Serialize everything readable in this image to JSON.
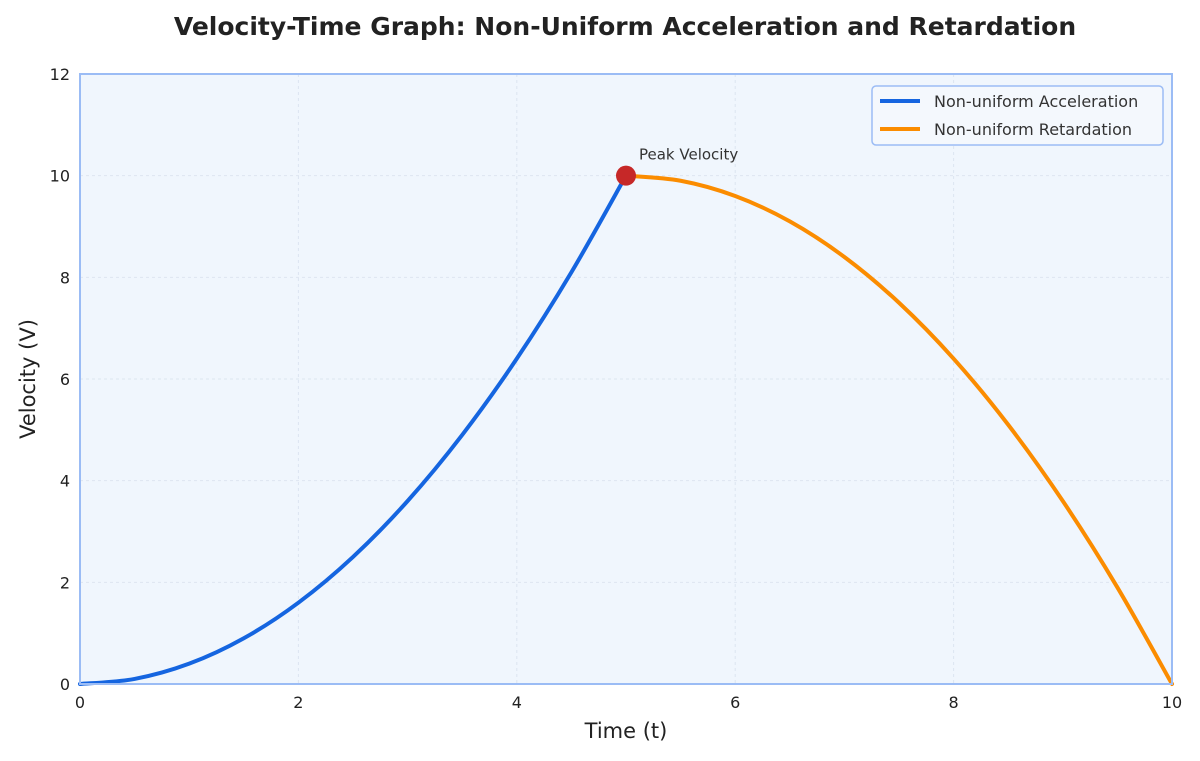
{
  "chart_data": {
    "type": "line",
    "title": "Velocity-Time Graph: Non-Uniform Acceleration and Retardation",
    "xlabel": "Time (t)",
    "ylabel": "Velocity (V)",
    "xlim": [
      0,
      10
    ],
    "ylim": [
      0,
      12
    ],
    "xticks": [
      "0",
      "2",
      "4",
      "6",
      "8",
      "10"
    ],
    "yticks": [
      "0",
      "2",
      "4",
      "6",
      "8",
      "10",
      "12"
    ],
    "grid": true,
    "legend_position": "top-right",
    "colors": {
      "acceleration": "#1565e0",
      "retardation": "#fb8c00",
      "peak": "#c62828",
      "plot_bg": "#f0f6fd",
      "frame": "#9bbcf5",
      "grid": "#dde5f0"
    },
    "series": [
      {
        "name": "Non-uniform Acceleration",
        "x": [
          0,
          0.5,
          1,
          1.5,
          2,
          2.5,
          3,
          3.5,
          4,
          4.5,
          5
        ],
        "y": [
          0,
          0.1,
          0.4,
          0.9,
          1.6,
          2.5,
          3.6,
          4.9,
          6.4,
          8.1,
          10
        ]
      },
      {
        "name": "Non-uniform Retardation",
        "x": [
          5,
          5.5,
          6,
          6.5,
          7,
          7.5,
          8,
          8.5,
          9,
          9.5,
          10
        ],
        "y": [
          10,
          9.9,
          9.6,
          9.1,
          8.4,
          7.5,
          6.4,
          5.1,
          3.6,
          1.9,
          0
        ]
      }
    ],
    "annotations": [
      {
        "text": "Peak Velocity",
        "x": 5,
        "y": 10
      }
    ]
  }
}
